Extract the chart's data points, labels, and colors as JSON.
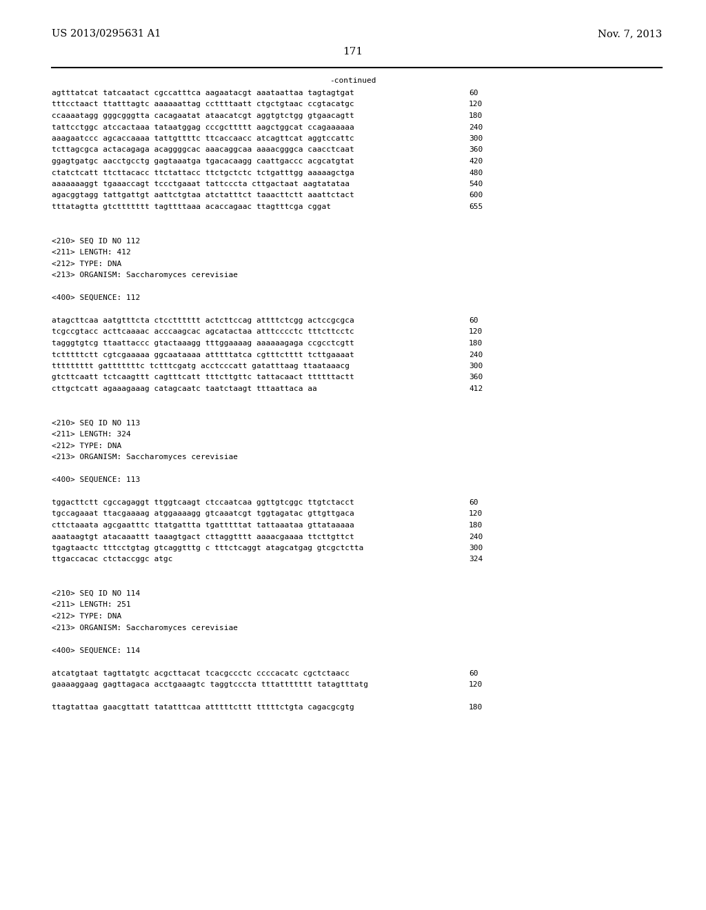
{
  "header_left": "US 2013/0295631 A1",
  "header_right": "Nov. 7, 2013",
  "page_number": "171",
  "continued_label": "-continued",
  "background_color": "#ffffff",
  "text_color": "#000000",
  "font_size": 8.0,
  "header_font_size": 10.5,
  "page_num_font_size": 11,
  "lines": [
    {
      "text": "agtttatcat tatcaatact cgccatttca aagaatacgt aaataattaa tagtagtgat",
      "num": "60",
      "type": "seq"
    },
    {
      "text": "tttcctaact ttatttagtc aaaaaattag ccttttaatt ctgctgtaac ccgtacatgc",
      "num": "120",
      "type": "seq"
    },
    {
      "text": "ccaaaatagg gggcgggtta cacagaatat ataacatcgt aggtgtctgg gtgaacagtt",
      "num": "180",
      "type": "seq"
    },
    {
      "text": "tattcctggc atccactaaa tataatggag cccgcttttt aagctggcat ccagaaaaaa",
      "num": "240",
      "type": "seq"
    },
    {
      "text": "aaagaatccc agcaccaaaa tattgttttc ttcaccaacc atcagttcat aggtccattc",
      "num": "300",
      "type": "seq"
    },
    {
      "text": "tcttagcgca actacagaga acaggggcac aaacaggcaa aaaacgggca caacctcaat",
      "num": "360",
      "type": "seq"
    },
    {
      "text": "ggagtgatgc aacctgcctg gagtaaatga tgacacaagg caattgaccc acgcatgtat",
      "num": "420",
      "type": "seq"
    },
    {
      "text": "ctatctcatt ttcttacacc ttctattacc ttctgctctc tctgatttgg aaaaagctga",
      "num": "480",
      "type": "seq"
    },
    {
      "text": "aaaaaaaggt tgaaaccagt tccctgaaat tattcccta cttgactaat aagtatataa",
      "num": "540",
      "type": "seq"
    },
    {
      "text": "agacggtagg tattgattgt aattctgtaa atctatttct taaacttctt aaattctact",
      "num": "600",
      "type": "seq"
    },
    {
      "text": "tttatagtta gtcttttttt tagttttaaa acaccagaac ttagtttcga cggat",
      "num": "655",
      "type": "seq"
    },
    {
      "text": "",
      "num": "",
      "type": "blank"
    },
    {
      "text": "",
      "num": "",
      "type": "blank"
    },
    {
      "text": "<210> SEQ ID NO 112",
      "num": "",
      "type": "meta"
    },
    {
      "text": "<211> LENGTH: 412",
      "num": "",
      "type": "meta"
    },
    {
      "text": "<212> TYPE: DNA",
      "num": "",
      "type": "meta"
    },
    {
      "text": "<213> ORGANISM: Saccharomyces cerevisiae",
      "num": "",
      "type": "meta"
    },
    {
      "text": "",
      "num": "",
      "type": "blank"
    },
    {
      "text": "<400> SEQUENCE: 112",
      "num": "",
      "type": "meta"
    },
    {
      "text": "",
      "num": "",
      "type": "blank"
    },
    {
      "text": "atagcttcaa aatgtttcta ctcctttttt actcttccag attttctcgg actccgcgca",
      "num": "60",
      "type": "seq"
    },
    {
      "text": "tcgccgtacc acttcaaaac acccaagcac agcatactaa atttcccctc tttcttcctc",
      "num": "120",
      "type": "seq"
    },
    {
      "text": "tagggtgtcg ttaattaccc gtactaaagg tttggaaaag aaaaaagaga ccgcctcgtt",
      "num": "180",
      "type": "seq"
    },
    {
      "text": "tctttttctt cgtcgaaaaa ggcaataaaa atttttatca cgtttctttt tcttgaaaat",
      "num": "240",
      "type": "seq"
    },
    {
      "text": "ttttttttt gatttttttc tctttcgatg acctcccatt gatatttaag ttaataaacg",
      "num": "300",
      "type": "seq"
    },
    {
      "text": "gtcttcaatt tctcaagttt cagtttcatt tttcttgttc tattacaact ttttttactt",
      "num": "360",
      "type": "seq"
    },
    {
      "text": "cttgctcatt agaaagaaag catagcaatc taatctaagt tttaattaca aa",
      "num": "412",
      "type": "seq"
    },
    {
      "text": "",
      "num": "",
      "type": "blank"
    },
    {
      "text": "",
      "num": "",
      "type": "blank"
    },
    {
      "text": "<210> SEQ ID NO 113",
      "num": "",
      "type": "meta"
    },
    {
      "text": "<211> LENGTH: 324",
      "num": "",
      "type": "meta"
    },
    {
      "text": "<212> TYPE: DNA",
      "num": "",
      "type": "meta"
    },
    {
      "text": "<213> ORGANISM: Saccharomyces cerevisiae",
      "num": "",
      "type": "meta"
    },
    {
      "text": "",
      "num": "",
      "type": "blank"
    },
    {
      "text": "<400> SEQUENCE: 113",
      "num": "",
      "type": "meta"
    },
    {
      "text": "",
      "num": "",
      "type": "blank"
    },
    {
      "text": "tggacttctt cgccagaggt ttggtcaagt ctccaatcaa ggttgtcggc ttgtctacct",
      "num": "60",
      "type": "seq"
    },
    {
      "text": "tgccagaaat ttacgaaaag atggaaaagg gtcaaatcgt tggtagatac gttgttgaca",
      "num": "120",
      "type": "seq"
    },
    {
      "text": "cttctaaata agcgaatttc ttatgattta tgatttttat tattaaataa gttataaaaa",
      "num": "180",
      "type": "seq"
    },
    {
      "text": "aaataagtgt atacaaattt taaagtgact cttaggtttt aaaacgaaaa ttcttgttct",
      "num": "240",
      "type": "seq"
    },
    {
      "text": "tgagtaactc tttcctgtag gtcaggtttg c tttctcaggt atagcatgag gtcgctctta",
      "num": "300",
      "type": "seq"
    },
    {
      "text": "ttgaccacac ctctaccggc atgc",
      "num": "324",
      "type": "seq"
    },
    {
      "text": "",
      "num": "",
      "type": "blank"
    },
    {
      "text": "",
      "num": "",
      "type": "blank"
    },
    {
      "text": "<210> SEQ ID NO 114",
      "num": "",
      "type": "meta"
    },
    {
      "text": "<211> LENGTH: 251",
      "num": "",
      "type": "meta"
    },
    {
      "text": "<212> TYPE: DNA",
      "num": "",
      "type": "meta"
    },
    {
      "text": "<213> ORGANISM: Saccharomyces cerevisiae",
      "num": "",
      "type": "meta"
    },
    {
      "text": "",
      "num": "",
      "type": "blank"
    },
    {
      "text": "<400> SEQUENCE: 114",
      "num": "",
      "type": "meta"
    },
    {
      "text": "",
      "num": "",
      "type": "blank"
    },
    {
      "text": "atcatgtaat tagttatgtc acgcttacat tcacgccctc ccccacatc cgctctaacc",
      "num": "60",
      "type": "seq"
    },
    {
      "text": "gaaaaggaag gagttagaca acctgaaagtc taggtcccta tttattttttt tatagtttatg",
      "num": "120",
      "type": "seq"
    },
    {
      "text": "",
      "num": "",
      "type": "blank"
    },
    {
      "text": "ttagtattaa gaacgttatt tatatttcaa atttttcttt tttttctgta cagacgcgtg",
      "num": "180",
      "type": "seq"
    }
  ]
}
